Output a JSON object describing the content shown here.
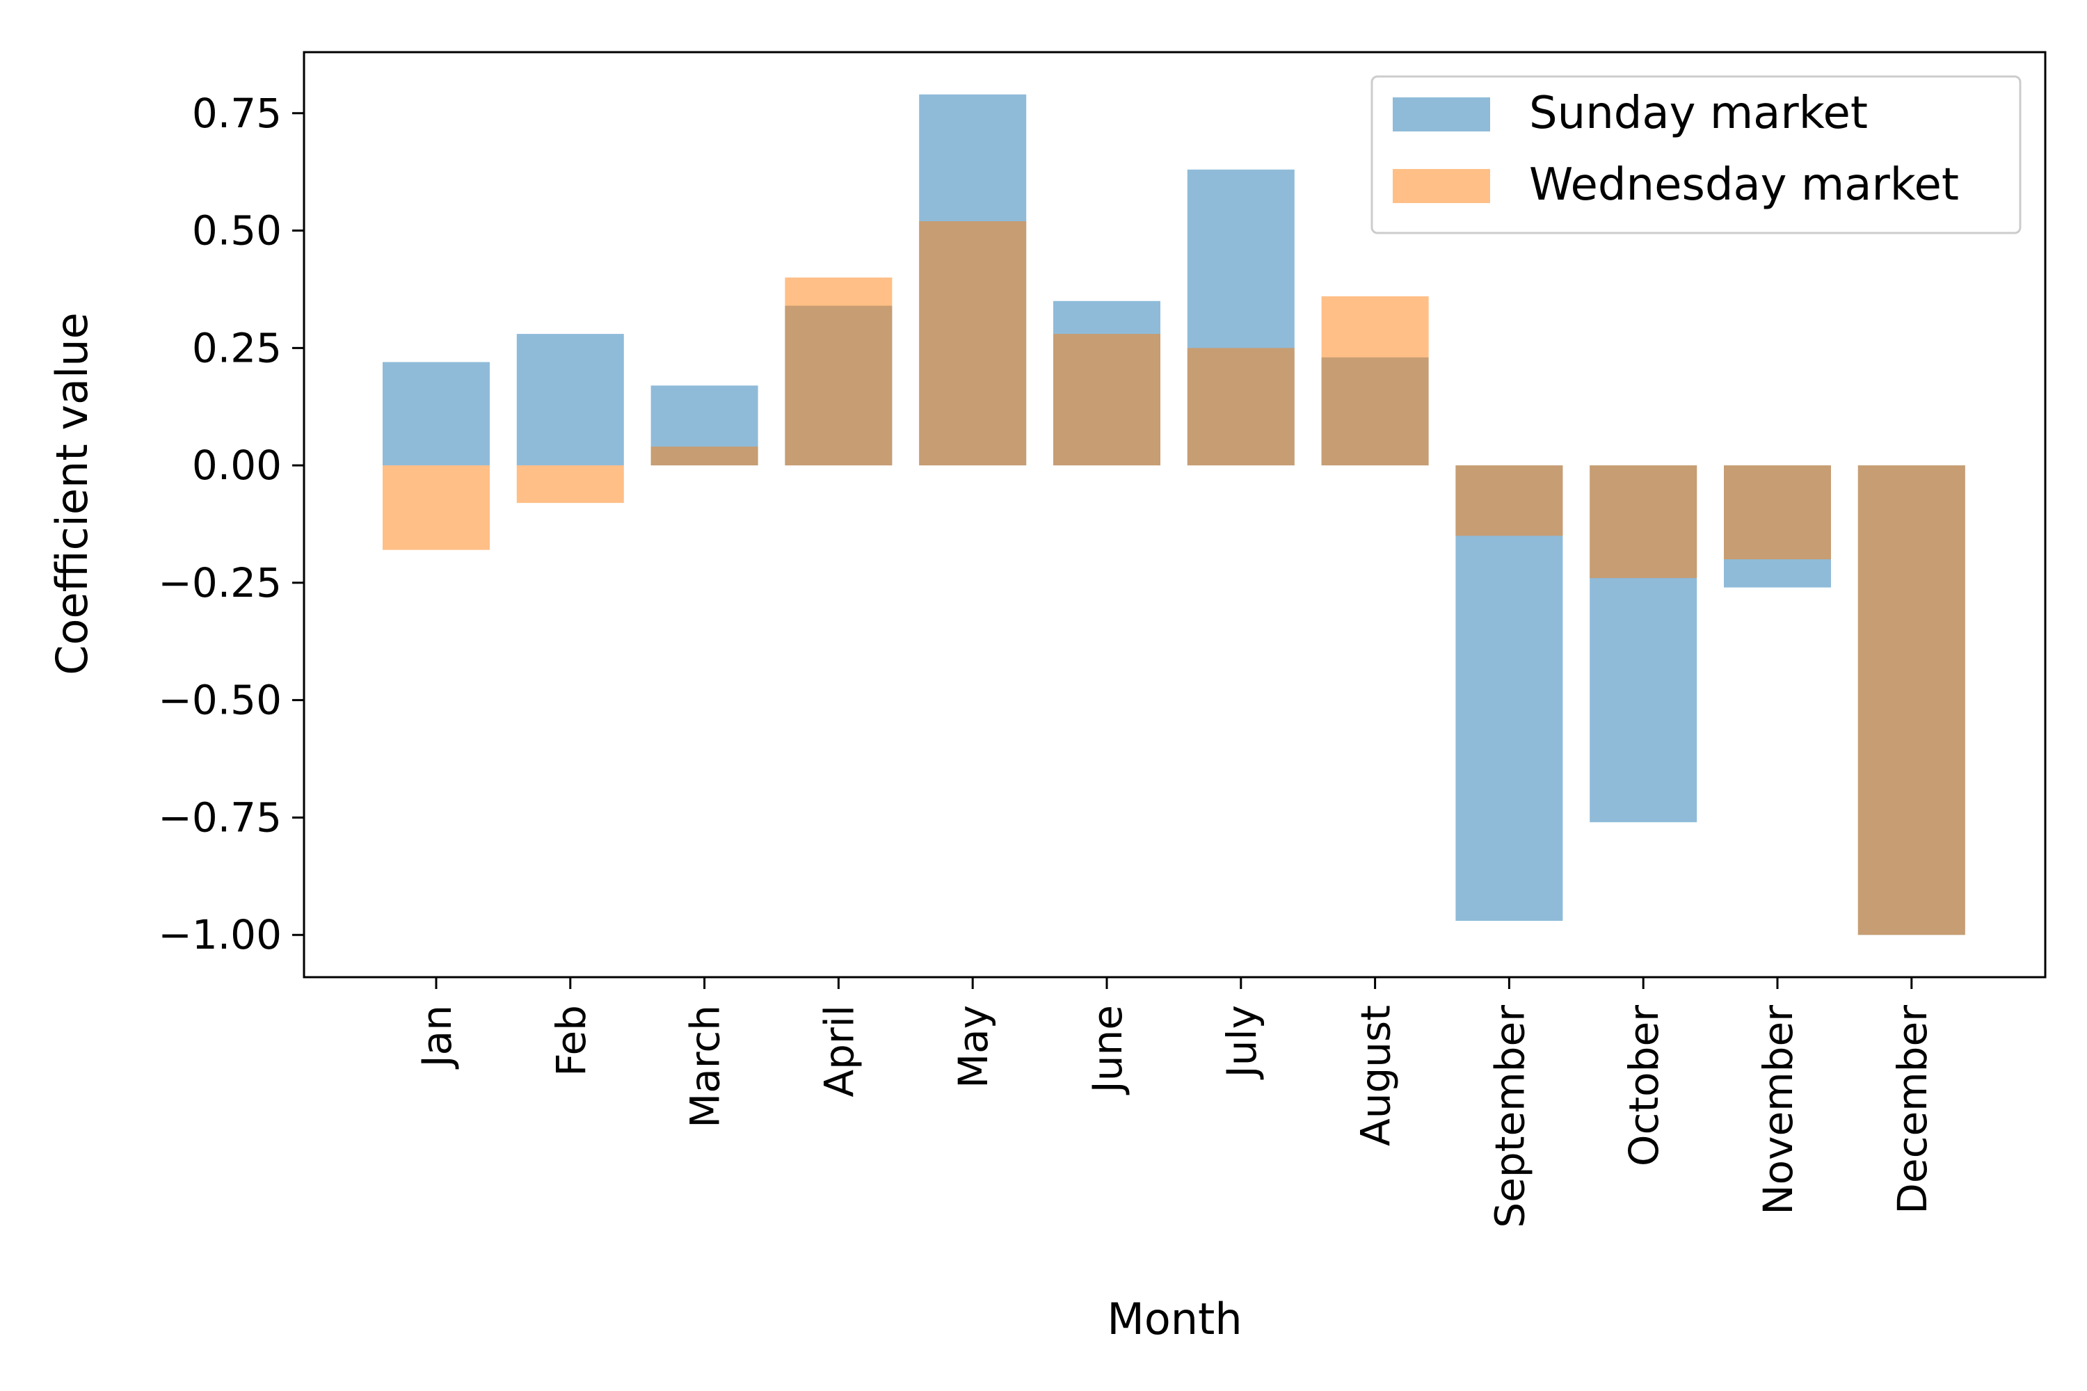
{
  "chart_data": {
    "type": "bar",
    "title": "",
    "xlabel": "Month",
    "ylabel": "Coefficient value",
    "ylim": [
      -1.09,
      0.88
    ],
    "yticks": [
      0.75,
      0.5,
      0.25,
      0.0,
      -0.25,
      -0.5,
      -0.75,
      -1.0
    ],
    "ytick_labels": [
      "0.75",
      "0.50",
      "0.25",
      "0.00",
      "−0.25",
      "−0.50",
      "−0.75",
      "−1.00"
    ],
    "categories": [
      "Jan",
      "Feb",
      "March",
      "April",
      "May",
      "June",
      "July",
      "August",
      "September",
      "October",
      "November",
      "December"
    ],
    "series": [
      {
        "name": "Sunday market",
        "color": "#1f77b4",
        "opacity": 0.5,
        "values": [
          0.22,
          0.28,
          0.17,
          0.34,
          0.79,
          0.35,
          0.63,
          0.23,
          -0.97,
          -0.76,
          -0.26,
          -1.0
        ]
      },
      {
        "name": "Wednesday market",
        "color": "#ff7f0e",
        "opacity": 0.5,
        "values": [
          -0.18,
          -0.08,
          0.04,
          0.4,
          0.52,
          0.28,
          0.25,
          0.36,
          -0.15,
          -0.24,
          -0.2,
          -1.0
        ]
      }
    ],
    "grid": false,
    "legend_position": "top-right"
  }
}
